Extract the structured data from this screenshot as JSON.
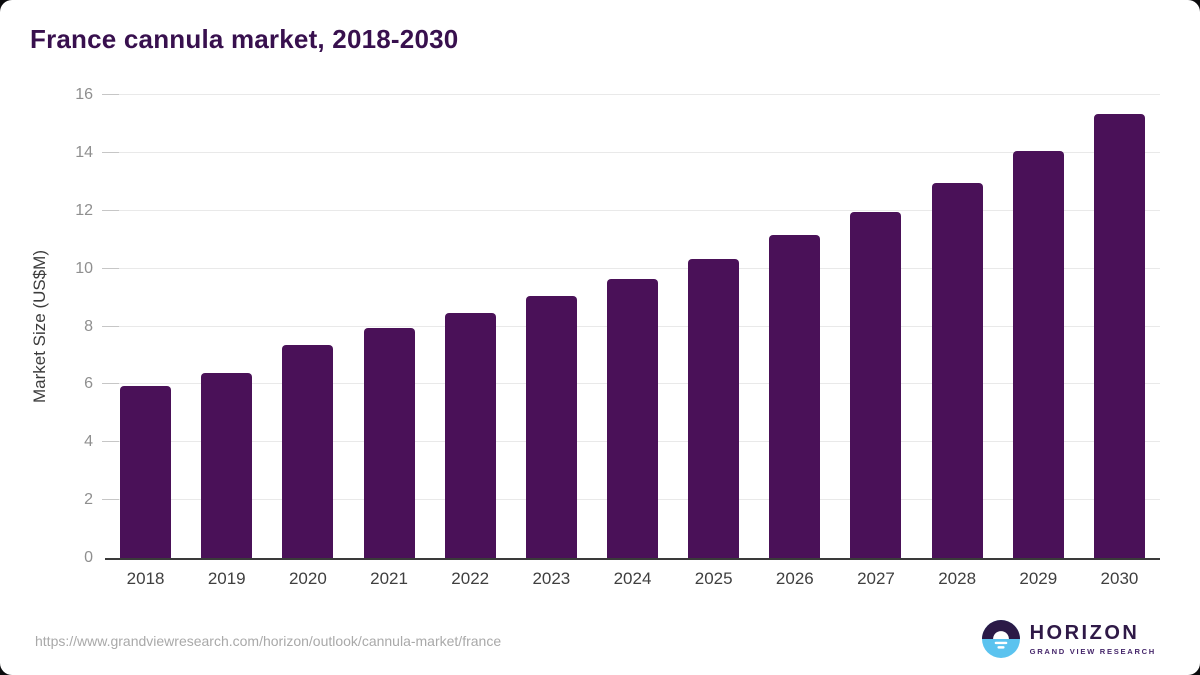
{
  "chart_data": {
    "type": "bar",
    "title": "France cannula market, 2018-2030",
    "categories": [
      "2018",
      "2019",
      "2020",
      "2021",
      "2022",
      "2023",
      "2024",
      "2025",
      "2026",
      "2027",
      "2028",
      "2029",
      "2030"
    ],
    "values": [
      5.95,
      6.4,
      7.35,
      7.95,
      8.45,
      9.05,
      9.65,
      10.35,
      11.15,
      11.95,
      12.95,
      14.05,
      15.35
    ],
    "xlabel": "",
    "ylabel": "Market Size (US$M)",
    "ylim": [
      0,
      16
    ],
    "yticks": [
      0,
      2,
      4,
      6,
      8,
      10,
      12,
      14,
      16
    ],
    "grid": "horizontal",
    "legend": "none",
    "bar_color": "#4A1158"
  },
  "colors": {
    "title_text": "#38104E",
    "bar": "#4A1158",
    "axis_line": "#3A3A3A",
    "gridline": "#E9E9E9",
    "tick_label": "#8F8F8F",
    "logo_dark_purple": "#2B1A47",
    "logo_light_blue": "#5BC3EF"
  },
  "footer": {
    "source_url": "https://www.grandviewresearch.com/horizon/outlook/cannula-market/france",
    "logo_title": "HORIZON",
    "logo_subtitle": "GRAND VIEW RESEARCH"
  }
}
